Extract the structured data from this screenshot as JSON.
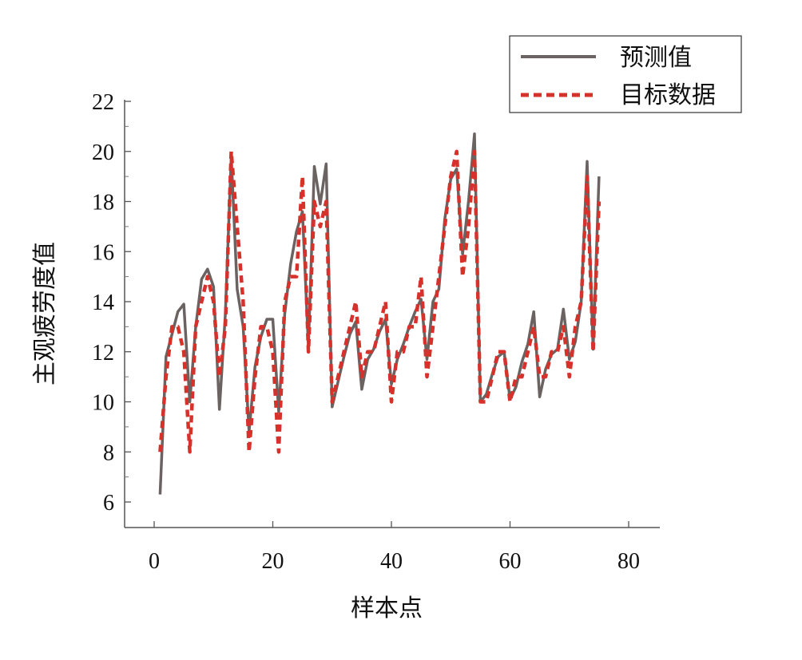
{
  "chart_data": {
    "type": "line",
    "title": "",
    "xlabel": "样本点",
    "ylabel": "主观疲劳度值",
    "xlim": [
      -5,
      85
    ],
    "ylim": [
      5,
      22
    ],
    "x_ticks": [
      "0",
      "20",
      "40",
      "60",
      "80"
    ],
    "y_ticks": [
      "6",
      "8",
      "10",
      "12",
      "14",
      "16",
      "18",
      "20",
      "22"
    ],
    "grid": false,
    "legend_position": "top-right",
    "colors": {
      "predicted": "#6b6361",
      "target": "#d6312a"
    },
    "series": [
      {
        "name": "预测值",
        "style": "solid",
        "x": [
          1,
          2,
          3,
          4,
          5,
          6,
          7,
          8,
          9,
          10,
          11,
          12,
          13,
          14,
          15,
          16,
          17,
          18,
          19,
          20,
          21,
          22,
          23,
          24,
          25,
          26,
          27,
          28,
          29,
          30,
          31,
          32,
          33,
          34,
          35,
          36,
          37,
          38,
          39,
          40,
          41,
          42,
          43,
          44,
          45,
          46,
          47,
          48,
          49,
          50,
          51,
          52,
          53,
          54,
          55,
          56,
          57,
          58,
          59,
          60,
          61,
          62,
          63,
          64,
          65,
          66,
          67,
          68,
          69,
          70,
          71,
          72,
          73,
          74,
          75
        ],
        "values": [
          6.3,
          11.8,
          12.7,
          13.6,
          13.9,
          10.0,
          13.0,
          14.9,
          15.3,
          14.6,
          9.7,
          13.5,
          19.8,
          14.5,
          13.0,
          8.8,
          11.4,
          12.6,
          13.3,
          13.3,
          9.6,
          13.5,
          15.5,
          16.8,
          17.6,
          12.2,
          19.4,
          17.9,
          19.5,
          9.8,
          10.8,
          11.8,
          12.7,
          13.2,
          10.5,
          11.7,
          12.1,
          12.8,
          13.3,
          10.7,
          11.7,
          12.3,
          13.0,
          13.6,
          14.1,
          11.7,
          14.0,
          14.5,
          17.3,
          18.9,
          19.3,
          15.9,
          18.0,
          20.7,
          10.0,
          10.3,
          11.1,
          11.8,
          12.0,
          10.1,
          10.6,
          11.6,
          12.3,
          13.6,
          10.2,
          11.3,
          11.9,
          12.1,
          13.7,
          11.7,
          12.4,
          14.0,
          19.6,
          12.1,
          19.0
        ]
      },
      {
        "name": "目标数据",
        "style": "dashed",
        "x": [
          1,
          2,
          3,
          4,
          5,
          6,
          7,
          8,
          9,
          10,
          11,
          12,
          13,
          14,
          15,
          16,
          17,
          18,
          19,
          20,
          21,
          22,
          23,
          24,
          25,
          26,
          27,
          28,
          29,
          30,
          31,
          32,
          33,
          34,
          35,
          36,
          37,
          38,
          39,
          40,
          41,
          42,
          43,
          44,
          45,
          46,
          47,
          48,
          49,
          50,
          51,
          52,
          53,
          54,
          55,
          56,
          57,
          58,
          59,
          60,
          61,
          62,
          63,
          64,
          65,
          66,
          67,
          68,
          69,
          70,
          71,
          72,
          73,
          74,
          75
        ],
        "values": [
          8.0,
          11.0,
          13.0,
          13.0,
          12.0,
          8.0,
          13.0,
          14.0,
          15.0,
          14.0,
          11.0,
          13.0,
          20.0,
          17.0,
          14.0,
          8.0,
          11.0,
          13.0,
          13.0,
          12.0,
          8.0,
          14.0,
          15.0,
          15.0,
          19.0,
          12.0,
          18.0,
          17.0,
          18.0,
          10.0,
          11.0,
          12.0,
          13.0,
          14.0,
          11.0,
          12.0,
          12.0,
          13.0,
          14.0,
          10.0,
          12.0,
          12.0,
          13.0,
          13.0,
          15.0,
          11.0,
          13.0,
          15.0,
          17.0,
          19.0,
          20.0,
          15.0,
          17.0,
          20.0,
          10.0,
          10.0,
          11.0,
          12.0,
          12.0,
          10.0,
          11.0,
          11.0,
          12.0,
          13.0,
          11.0,
          11.0,
          12.0,
          12.0,
          13.0,
          11.0,
          13.0,
          14.0,
          19.0,
          12.0,
          18.0
        ]
      }
    ]
  }
}
